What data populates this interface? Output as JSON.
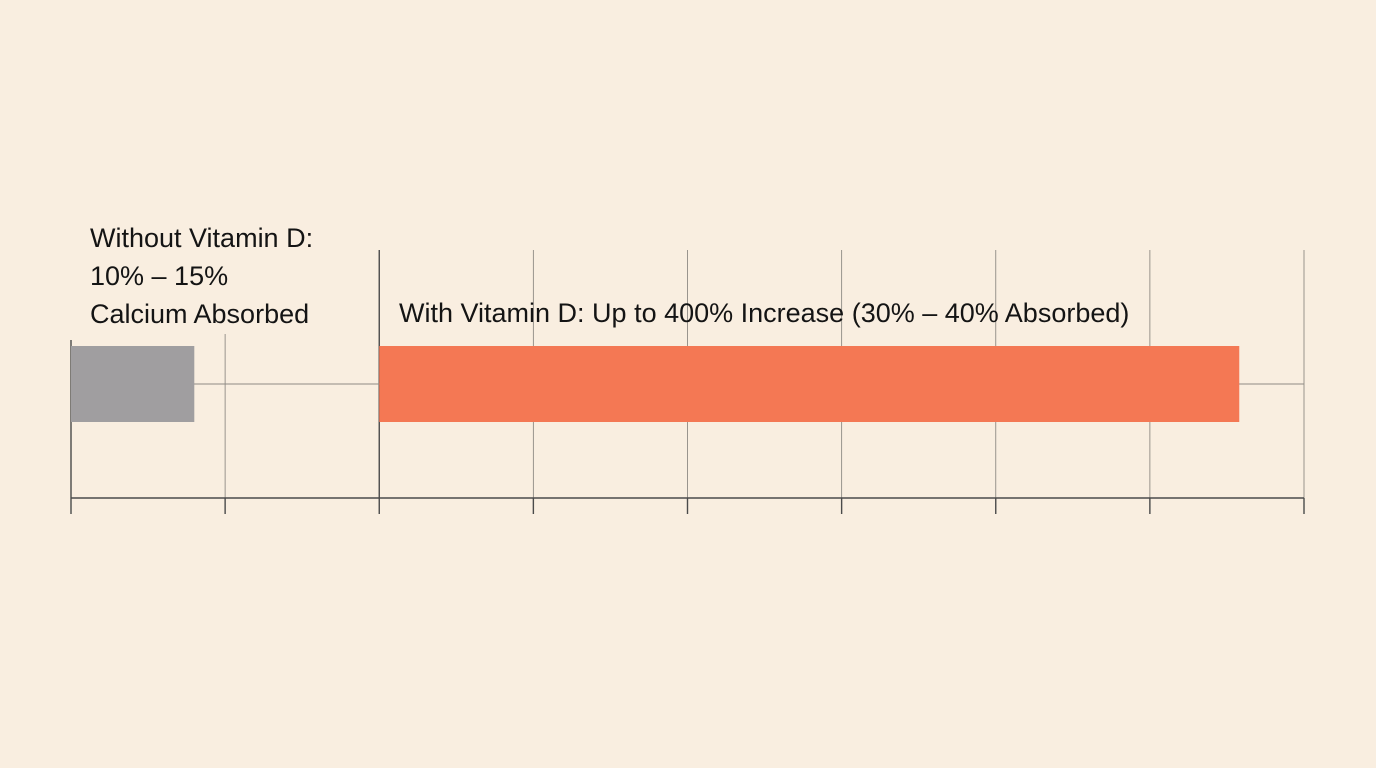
{
  "colors": {
    "background": "#f9eee0",
    "without_bar": "#a09ea0",
    "with_bar": "#f47854",
    "grid": "#8e8a84",
    "axis": "#4a4a4a",
    "text": "#141414"
  },
  "chart_data": {
    "type": "bar",
    "orientation": "horizontal",
    "title": "",
    "xlabel": "",
    "ylabel": "",
    "grid": true,
    "legend": "none",
    "xlim": [
      0,
      8
    ],
    "series": [
      {
        "label_lines": [
          "Without Vitamin D:",
          "10% – 15%",
          "Calcium Absorbed"
        ],
        "start": 0,
        "end": 0.8,
        "color": "#a09ea0"
      },
      {
        "label_lines": [
          "With Vitamin D: Up to 400% Increase (30% – 40% Absorbed)"
        ],
        "start": 2,
        "end": 7.58,
        "color": "#f47854"
      }
    ]
  }
}
